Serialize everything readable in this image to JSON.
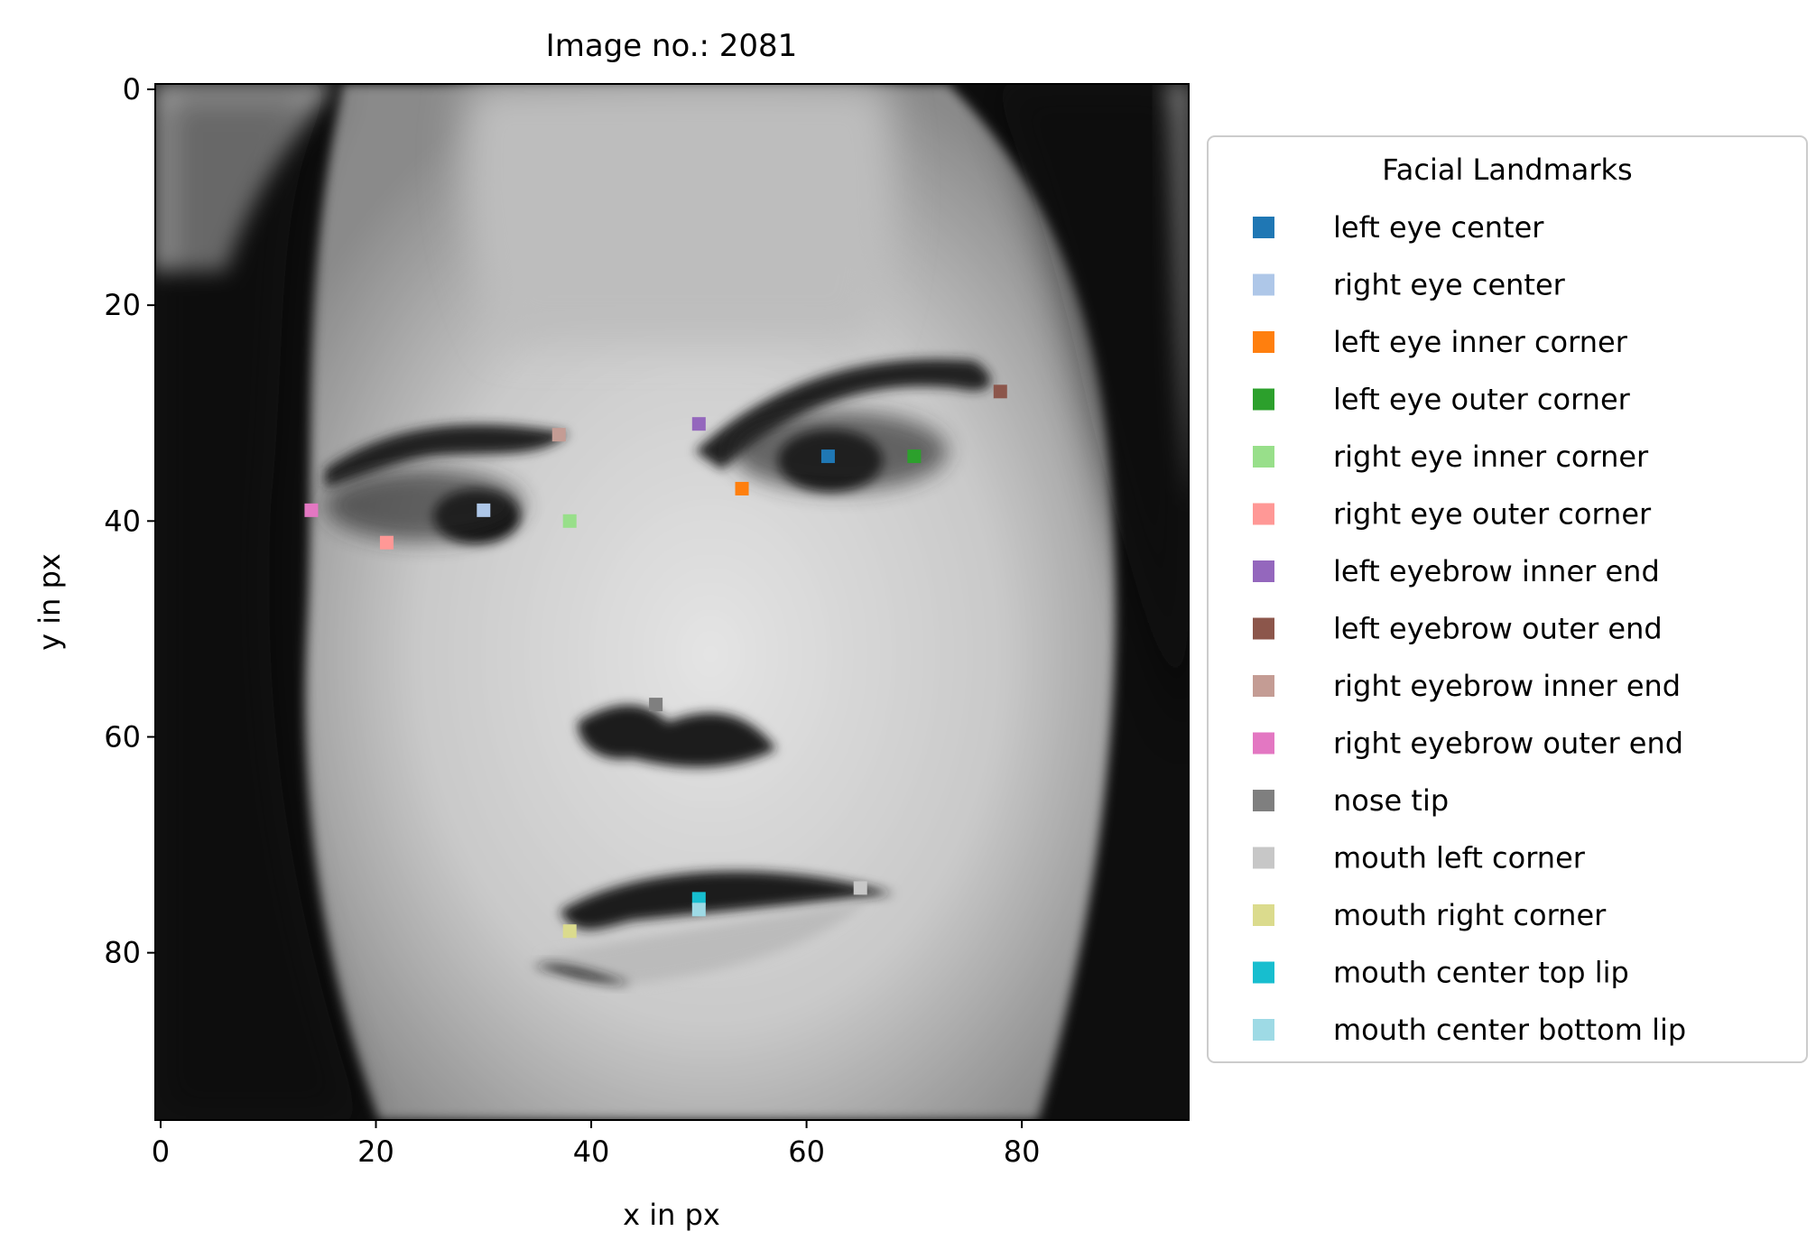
{
  "chart_data": {
    "type": "scatter",
    "title": "Image no.: 2081",
    "xlabel": "x in px",
    "ylabel": "y in px",
    "xlim": [
      -0.5,
      95.5
    ],
    "ylim": [
      95.5,
      -0.5
    ],
    "x_ticks": [
      0,
      20,
      40,
      60,
      80
    ],
    "y_ticks": [
      0,
      20,
      40,
      60,
      80
    ],
    "background": "96x96 grayscale face photograph",
    "legend": {
      "title": "Facial Landmarks",
      "placement": "outside right"
    },
    "series": [
      {
        "name": "left eye center",
        "color": "#1f77b4",
        "x": 62,
        "y": 34
      },
      {
        "name": "right eye center",
        "color": "#aec7e8",
        "x": 30,
        "y": 39
      },
      {
        "name": "left eye inner corner",
        "color": "#ff7f0e",
        "x": 54,
        "y": 37
      },
      {
        "name": "left eye outer corner",
        "color": "#2ca02c",
        "x": 70,
        "y": 34
      },
      {
        "name": "right eye inner corner",
        "color": "#98df8a",
        "x": 38,
        "y": 40
      },
      {
        "name": "right eye outer corner",
        "color": "#ff9896",
        "x": 21,
        "y": 42
      },
      {
        "name": "left eyebrow inner end",
        "color": "#9467bd",
        "x": 50,
        "y": 31
      },
      {
        "name": "left eyebrow outer end",
        "color": "#8c564b",
        "x": 78,
        "y": 28
      },
      {
        "name": "right eyebrow inner end",
        "color": "#c49c94",
        "x": 37,
        "y": 32
      },
      {
        "name": "right eyebrow outer end",
        "color": "#e377c2",
        "x": 14,
        "y": 39
      },
      {
        "name": "nose tip",
        "color": "#7f7f7f",
        "x": 46,
        "y": 57
      },
      {
        "name": "mouth left corner",
        "color": "#c7c7c7",
        "x": 65,
        "y": 74
      },
      {
        "name": "mouth right corner",
        "color": "#dbdb8d",
        "x": 38,
        "y": 78
      },
      {
        "name": "mouth center top lip",
        "color": "#17becf",
        "x": 50,
        "y": 75
      },
      {
        "name": "mouth center bottom lip",
        "color": "#9edae5",
        "x": 50,
        "y": 76
      }
    ]
  }
}
